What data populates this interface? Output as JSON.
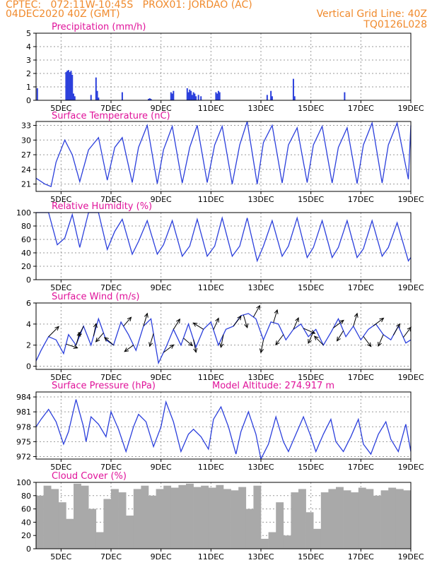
{
  "header": {
    "line1": "CPTEC:   072:11W-10:45S   PROX01: JORDAO (AC)",
    "line2": "04DEC2020 40Z (GMT)",
    "right1": "Vertical Grid Line: 40Z",
    "right2": "TQ0126L028"
  },
  "colors": {
    "header": "#f08a2c",
    "title": "#e0139a",
    "series": "#2b3fdc",
    "cloud": "#a9a9a9",
    "grid": "#9a9a9a"
  },
  "x_axis": {
    "tick_labels": [
      "5DEC",
      "7DEC",
      "9DEC",
      "11DEC",
      "13DEC",
      "15DEC",
      "17DEC",
      "19DEC"
    ],
    "tick_days": [
      5,
      7,
      9,
      11,
      13,
      15,
      17,
      19
    ],
    "start_day": 4,
    "end_day": 19
  },
  "chart_data": [
    {
      "id": "precip",
      "type": "bar",
      "title": "Precipitation (mm/h)",
      "ylim": [
        0,
        5
      ],
      "yticks": [
        0,
        1,
        2,
        3,
        4,
        5
      ],
      "x": [
        4.05,
        5.2,
        5.25,
        5.3,
        5.35,
        5.4,
        5.45,
        5.5,
        5.55,
        6.2,
        6.4,
        6.45,
        6.5,
        7.45,
        8.5,
        8.55,
        8.6,
        9.4,
        9.45,
        9.5,
        10.05,
        10.1,
        10.15,
        10.2,
        10.25,
        10.3,
        10.35,
        10.4,
        10.5,
        10.6,
        11.2,
        11.25,
        11.3,
        11.35,
        13.25,
        13.4,
        13.45,
        14.3,
        14.35,
        16.35
      ],
      "values": [
        0.9,
        2.1,
        2.2,
        2.25,
        2.1,
        2.2,
        1.9,
        0.5,
        0.3,
        0.4,
        1.7,
        0.7,
        0.2,
        0.6,
        0.1,
        0.15,
        0.1,
        0.6,
        0.5,
        0.7,
        0.9,
        0.6,
        0.8,
        0.7,
        0.4,
        0.6,
        0.5,
        0.3,
        0.4,
        0.3,
        0.6,
        0.5,
        0.7,
        0.6,
        0.4,
        0.7,
        0.3,
        1.6,
        0.3,
        0.6
      ],
      "color": "#2b3fdc"
    },
    {
      "id": "temp",
      "type": "line",
      "title": "Surface Temperature (nC)",
      "ylim": [
        19.5,
        33.8
      ],
      "yticks": [
        21,
        24,
        27,
        30,
        33
      ],
      "x": [
        4.0,
        4.35,
        4.6,
        4.8,
        5.15,
        5.45,
        5.75,
        6.1,
        6.5,
        6.85,
        7.15,
        7.45,
        7.85,
        8.1,
        8.45,
        8.85,
        9.1,
        9.45,
        9.85,
        10.15,
        10.45,
        10.85,
        11.15,
        11.45,
        11.85,
        12.15,
        12.45,
        12.85,
        13.1,
        13.45,
        13.85,
        14.1,
        14.45,
        14.85,
        15.1,
        15.45,
        15.85,
        16.1,
        16.45,
        16.85,
        17.1,
        17.45,
        17.85,
        18.1,
        18.45,
        18.9,
        19.0
      ],
      "values": [
        22.2,
        21.0,
        20.5,
        25.5,
        30.0,
        27.0,
        21.5,
        28.0,
        30.5,
        21.8,
        28.5,
        30.5,
        21.3,
        28.5,
        33.0,
        21.1,
        28.0,
        32.8,
        21.2,
        28.5,
        33.0,
        21.3,
        29.0,
        32.8,
        21.0,
        29.0,
        33.8,
        21.0,
        29.5,
        33.0,
        21.2,
        29.0,
        32.5,
        21.3,
        29.0,
        32.8,
        21.2,
        28.5,
        32.5,
        21.1,
        29.0,
        33.5,
        21.2,
        29.0,
        33.5,
        22.0,
        33.0
      ],
      "color": "#2b3fdc"
    },
    {
      "id": "rh",
      "type": "line",
      "title": "Relative Humidity (%)",
      "ylim": [
        0,
        100
      ],
      "yticks": [
        0,
        20,
        40,
        60,
        80,
        100
      ],
      "x": [
        4.0,
        4.5,
        4.85,
        5.15,
        5.45,
        5.75,
        6.1,
        6.5,
        6.85,
        7.15,
        7.45,
        7.85,
        8.1,
        8.45,
        8.85,
        9.1,
        9.45,
        9.85,
        10.15,
        10.45,
        10.85,
        11.15,
        11.45,
        11.85,
        12.15,
        12.45,
        12.85,
        13.1,
        13.45,
        13.85,
        14.1,
        14.45,
        14.85,
        15.1,
        15.45,
        15.85,
        16.1,
        16.45,
        16.85,
        17.1,
        17.45,
        17.85,
        18.1,
        18.45,
        18.9,
        19.0
      ],
      "values": [
        100,
        100,
        52,
        62,
        97,
        48,
        100,
        100,
        45,
        72,
        90,
        38,
        57,
        88,
        38,
        52,
        88,
        35,
        50,
        90,
        35,
        50,
        92,
        35,
        50,
        92,
        28,
        50,
        88,
        35,
        50,
        92,
        33,
        48,
        88,
        33,
        48,
        88,
        33,
        46,
        88,
        35,
        48,
        85,
        28,
        33
      ],
      "color": "#2b3fdc"
    },
    {
      "id": "wind",
      "type": "line",
      "title": "Surface Wind (m/s)",
      "ylim": [
        -0.3,
        6
      ],
      "yticks": [
        0,
        2,
        4,
        6
      ],
      "x": [
        4.0,
        4.2,
        4.5,
        4.8,
        5.1,
        5.3,
        5.6,
        5.9,
        6.2,
        6.5,
        6.8,
        7.1,
        7.4,
        7.7,
        8.0,
        8.3,
        8.6,
        8.9,
        9.2,
        9.5,
        9.8,
        10.1,
        10.4,
        10.7,
        11.0,
        11.3,
        11.6,
        11.9,
        12.2,
        12.5,
        12.8,
        13.1,
        13.4,
        13.7,
        14.0,
        14.3,
        14.6,
        14.9,
        15.2,
        15.5,
        15.8,
        16.1,
        16.4,
        16.7,
        17.0,
        17.3,
        17.6,
        17.9,
        18.2,
        18.5,
        18.8,
        19.0
      ],
      "values": [
        0.5,
        1.5,
        2.8,
        2.5,
        1.2,
        3.0,
        2.0,
        3.8,
        2.0,
        4.5,
        2.5,
        2.0,
        4.2,
        3.0,
        1.5,
        3.8,
        4.5,
        0.3,
        1.8,
        3.5,
        2.0,
        4.0,
        1.8,
        3.5,
        4.2,
        2.0,
        3.5,
        3.8,
        4.8,
        5.0,
        4.5,
        2.5,
        4.2,
        4.0,
        2.5,
        3.5,
        4.0,
        2.8,
        3.5,
        2.0,
        3.2,
        4.5,
        2.8,
        3.8,
        2.5,
        3.5,
        4.0,
        3.0,
        2.5,
        3.8,
        2.2,
        2.5
      ],
      "color": "#2b3fdc",
      "wind_arrows": [
        {
          "x": 4.5,
          "u": 0.8,
          "v": 0.8
        },
        {
          "x": 5.2,
          "u": 0.9,
          "v": -0.3
        },
        {
          "x": 5.6,
          "u": 0.3,
          "v": 1.0
        },
        {
          "x": 5.9,
          "u": -0.4,
          "v": -0.8
        },
        {
          "x": 6.3,
          "u": 0.2,
          "v": 1.0
        },
        {
          "x": 6.7,
          "u": -0.6,
          "v": -0.7
        },
        {
          "x": 7.1,
          "u": -0.7,
          "v": 0.6
        },
        {
          "x": 7.5,
          "u": 0.6,
          "v": 0.7
        },
        {
          "x": 7.9,
          "u": -0.7,
          "v": -0.5
        },
        {
          "x": 8.3,
          "u": 0.3,
          "v": 1.0
        },
        {
          "x": 8.7,
          "u": -0.3,
          "v": -1.0
        },
        {
          "x": 9.1,
          "u": 0.8,
          "v": 0.6
        },
        {
          "x": 9.5,
          "u": 0.5,
          "v": 0.8
        },
        {
          "x": 9.9,
          "u": 0.7,
          "v": -0.6
        },
        {
          "x": 10.3,
          "u": 0.2,
          "v": -1.0
        },
        {
          "x": 10.7,
          "u": -0.8,
          "v": 0.5
        },
        {
          "x": 11.1,
          "u": 0.4,
          "v": 0.9
        },
        {
          "x": 11.5,
          "u": -0.2,
          "v": -1.0
        },
        {
          "x": 11.9,
          "u": 0.6,
          "v": 0.8
        },
        {
          "x": 12.3,
          "u": 0.3,
          "v": -1.0
        },
        {
          "x": 12.7,
          "u": 0.5,
          "v": 0.9
        },
        {
          "x": 13.1,
          "u": -0.2,
          "v": -1.0
        },
        {
          "x": 13.5,
          "u": 0.3,
          "v": 1.0
        },
        {
          "x": 13.9,
          "u": -0.6,
          "v": -0.8
        },
        {
          "x": 14.3,
          "u": 0.4,
          "v": 0.9
        },
        {
          "x": 14.7,
          "u": 0.9,
          "v": -0.4
        },
        {
          "x": 15.1,
          "u": -0.4,
          "v": -0.9
        },
        {
          "x": 15.5,
          "u": -0.7,
          "v": 0.7
        },
        {
          "x": 15.9,
          "u": 0.8,
          "v": 0.6
        },
        {
          "x": 16.3,
          "u": -0.5,
          "v": -0.8
        },
        {
          "x": 16.7,
          "u": 0.3,
          "v": 1.0
        },
        {
          "x": 17.1,
          "u": 0.6,
          "v": -0.8
        },
        {
          "x": 17.5,
          "u": 0.8,
          "v": 0.6
        },
        {
          "x": 17.9,
          "u": -0.4,
          "v": -0.9
        },
        {
          "x": 18.3,
          "u": 0.5,
          "v": 0.9
        },
        {
          "x": 18.7,
          "u": 0.6,
          "v": 0.8
        }
      ]
    },
    {
      "id": "press",
      "type": "line",
      "title": "Surface Pressure (hPa)",
      "subtitle": "Model Altitude: 274.917 m",
      "ylim": [
        971.5,
        985
      ],
      "yticks": [
        972,
        975,
        978,
        981,
        984
      ],
      "x": [
        4.0,
        4.2,
        4.5,
        4.8,
        5.1,
        5.3,
        5.6,
        5.9,
        6.0,
        6.2,
        6.5,
        6.8,
        7.0,
        7.3,
        7.6,
        7.9,
        8.1,
        8.4,
        8.7,
        9.0,
        9.2,
        9.5,
        9.8,
        10.1,
        10.3,
        10.6,
        10.9,
        11.1,
        11.4,
        11.7,
        12.0,
        12.2,
        12.5,
        12.8,
        13.0,
        13.3,
        13.6,
        13.9,
        14.1,
        14.4,
        14.7,
        15.0,
        15.2,
        15.5,
        15.8,
        16.0,
        16.3,
        16.6,
        16.9,
        17.1,
        17.4,
        17.7,
        18.0,
        18.2,
        18.5,
        18.8,
        19.0
      ],
      "values": [
        978.0,
        979.5,
        981.5,
        979.0,
        974.5,
        977.0,
        983.5,
        978.0,
        975.0,
        980.0,
        978.5,
        976.0,
        981.0,
        977.5,
        973.0,
        978.0,
        980.5,
        979.0,
        974.0,
        978.0,
        983.0,
        979.0,
        973.0,
        976.5,
        977.5,
        976.0,
        973.5,
        979.5,
        982.0,
        978.0,
        972.5,
        977.0,
        981.0,
        976.5,
        971.5,
        974.5,
        980.0,
        975.0,
        973.0,
        976.5,
        980.0,
        976.0,
        973.0,
        976.5,
        979.5,
        975.0,
        973.0,
        976.0,
        979.5,
        974.5,
        972.5,
        976.5,
        979.0,
        975.5,
        973.0,
        978.5,
        973.0
      ],
      "color": "#2b3fdc"
    },
    {
      "id": "cloud",
      "type": "area",
      "title": "Cloud Cover (%)",
      "ylim": [
        0,
        100
      ],
      "yticks": [
        0,
        20,
        40,
        60,
        80,
        100
      ],
      "x": [
        4.0,
        4.3,
        4.6,
        4.9,
        5.2,
        5.5,
        5.8,
        6.1,
        6.4,
        6.7,
        7.0,
        7.3,
        7.6,
        7.9,
        8.2,
        8.5,
        8.8,
        9.1,
        9.4,
        9.7,
        10.0,
        10.3,
        10.6,
        10.9,
        11.2,
        11.5,
        11.8,
        12.1,
        12.4,
        12.7,
        13.0,
        13.3,
        13.6,
        13.9,
        14.2,
        14.5,
        14.8,
        15.1,
        15.4,
        15.7,
        16.0,
        16.3,
        16.6,
        16.9,
        17.2,
        17.5,
        17.8,
        18.1,
        18.4,
        18.7,
        19.0
      ],
      "values": [
        80,
        95,
        90,
        70,
        45,
        98,
        95,
        60,
        25,
        75,
        90,
        85,
        50,
        90,
        95,
        80,
        90,
        95,
        92,
        96,
        98,
        93,
        95,
        92,
        96,
        90,
        88,
        93,
        60,
        95,
        15,
        25,
        70,
        20,
        85,
        90,
        55,
        30,
        85,
        90,
        93,
        88,
        85,
        92,
        90,
        80,
        88,
        92,
        90,
        88,
        85
      ],
      "color": "#a9a9a9"
    }
  ]
}
